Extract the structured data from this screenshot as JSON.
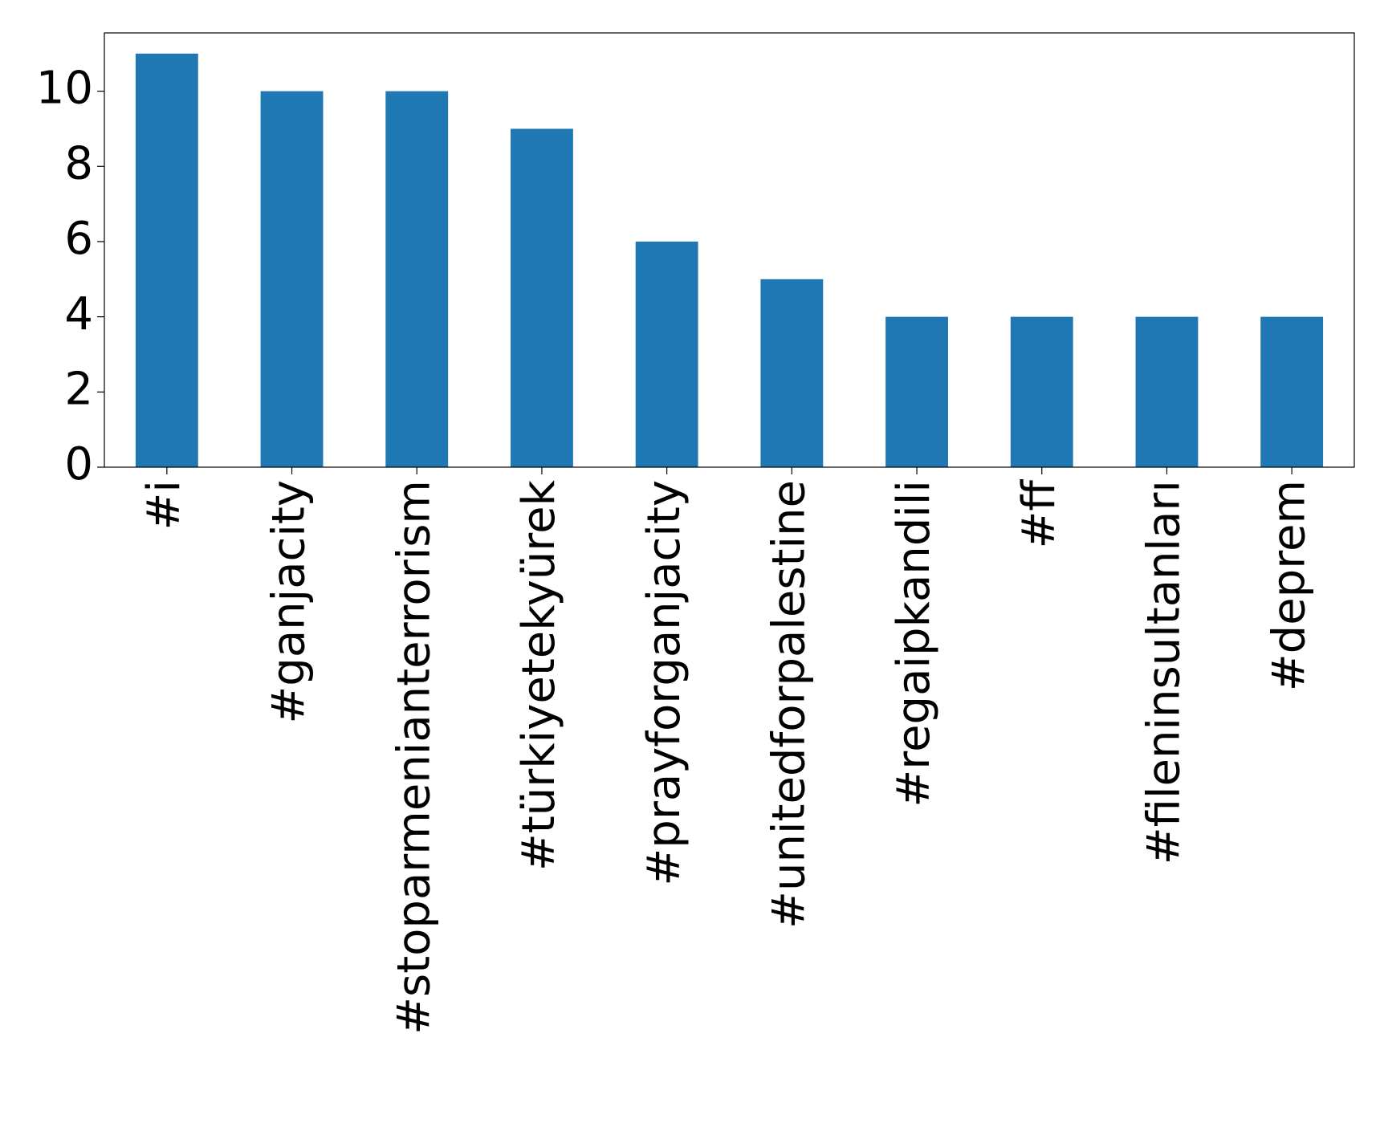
{
  "chart_data": {
    "type": "bar",
    "categories": [
      "#i",
      "#ganjacity",
      "#stoparmenianterrorism",
      "#türkiyetekyürek",
      "#prayforganjacity",
      "#unitedforpalestine",
      "#regaipkandili",
      "#ff",
      "#fileninsultanları",
      "#deprem"
    ],
    "values": [
      11,
      10,
      10,
      9,
      6,
      5,
      4,
      4,
      4,
      4
    ],
    "color": "#1f77b4",
    "ylim": [
      0,
      11.55
    ],
    "yticks": [
      0,
      2,
      4,
      6,
      8,
      10
    ],
    "grid": false
  }
}
